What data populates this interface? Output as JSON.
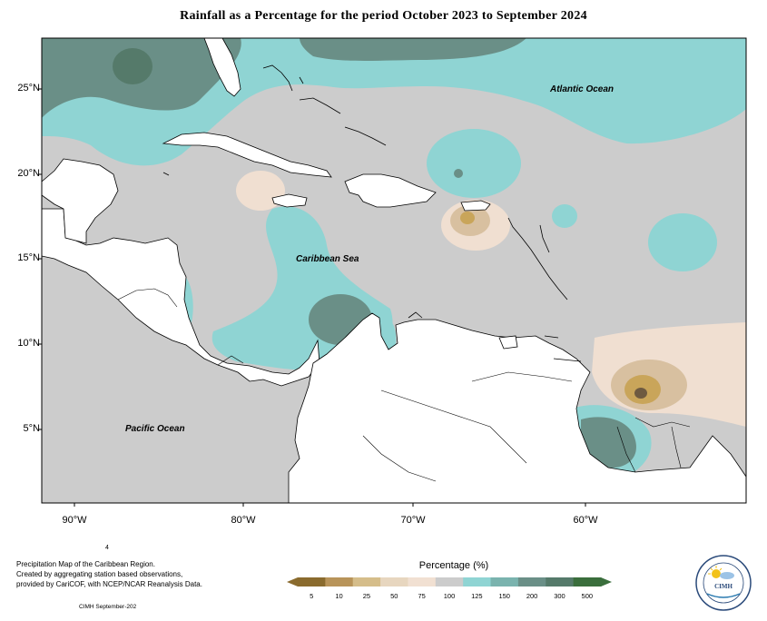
{
  "title": "Rainfall as a Percentage for the period October 2023 to September 2024",
  "axes": {
    "y_ticks": [
      "25°N",
      "20°N",
      "15°N",
      "10°N",
      "5°N"
    ],
    "x_ticks": [
      "90°W",
      "80°W",
      "70°W",
      "60°W"
    ]
  },
  "labels": {
    "atlantic": "Atlantic Ocean",
    "caribbean": "Caribbean Sea",
    "pacific": "Pacific Ocean"
  },
  "credits": {
    "page_mark": "4",
    "line1": "Precipitation Map of the Caribbean Region.",
    "line2": "Created by aggregating station based observations,",
    "line3": "provided by CariCOF, with NCEP/NCAR Reanalysis Data.",
    "stamp": "CIMH September-202"
  },
  "legend": {
    "title": "Percentage (%)",
    "ticks": [
      "5",
      "10",
      "25",
      "50",
      "75",
      "100",
      "125",
      "150",
      "200",
      "300",
      "500"
    ],
    "colors": [
      "#8a6b2e",
      "#b8945a",
      "#d5bd8a",
      "#e7d6bf",
      "#f1e0d2",
      "#cccccc",
      "#8fd4d3",
      "#7ab3ae",
      "#6a8f87",
      "#557a6a",
      "#3a6e3c"
    ]
  },
  "logo": {
    "text": "CIMH",
    "ring_text": "Caribbean Institute for Meteorology and Hydrology"
  },
  "colors": {
    "normal": "#cccccc",
    "wet": "#8fd4d3",
    "very_wet": "#6a8f87",
    "dry_light": "#f0dfd1",
    "dry": "#d8c0a0",
    "very_dry": "#c9a55a",
    "extreme_dry": "#6e5a40"
  }
}
